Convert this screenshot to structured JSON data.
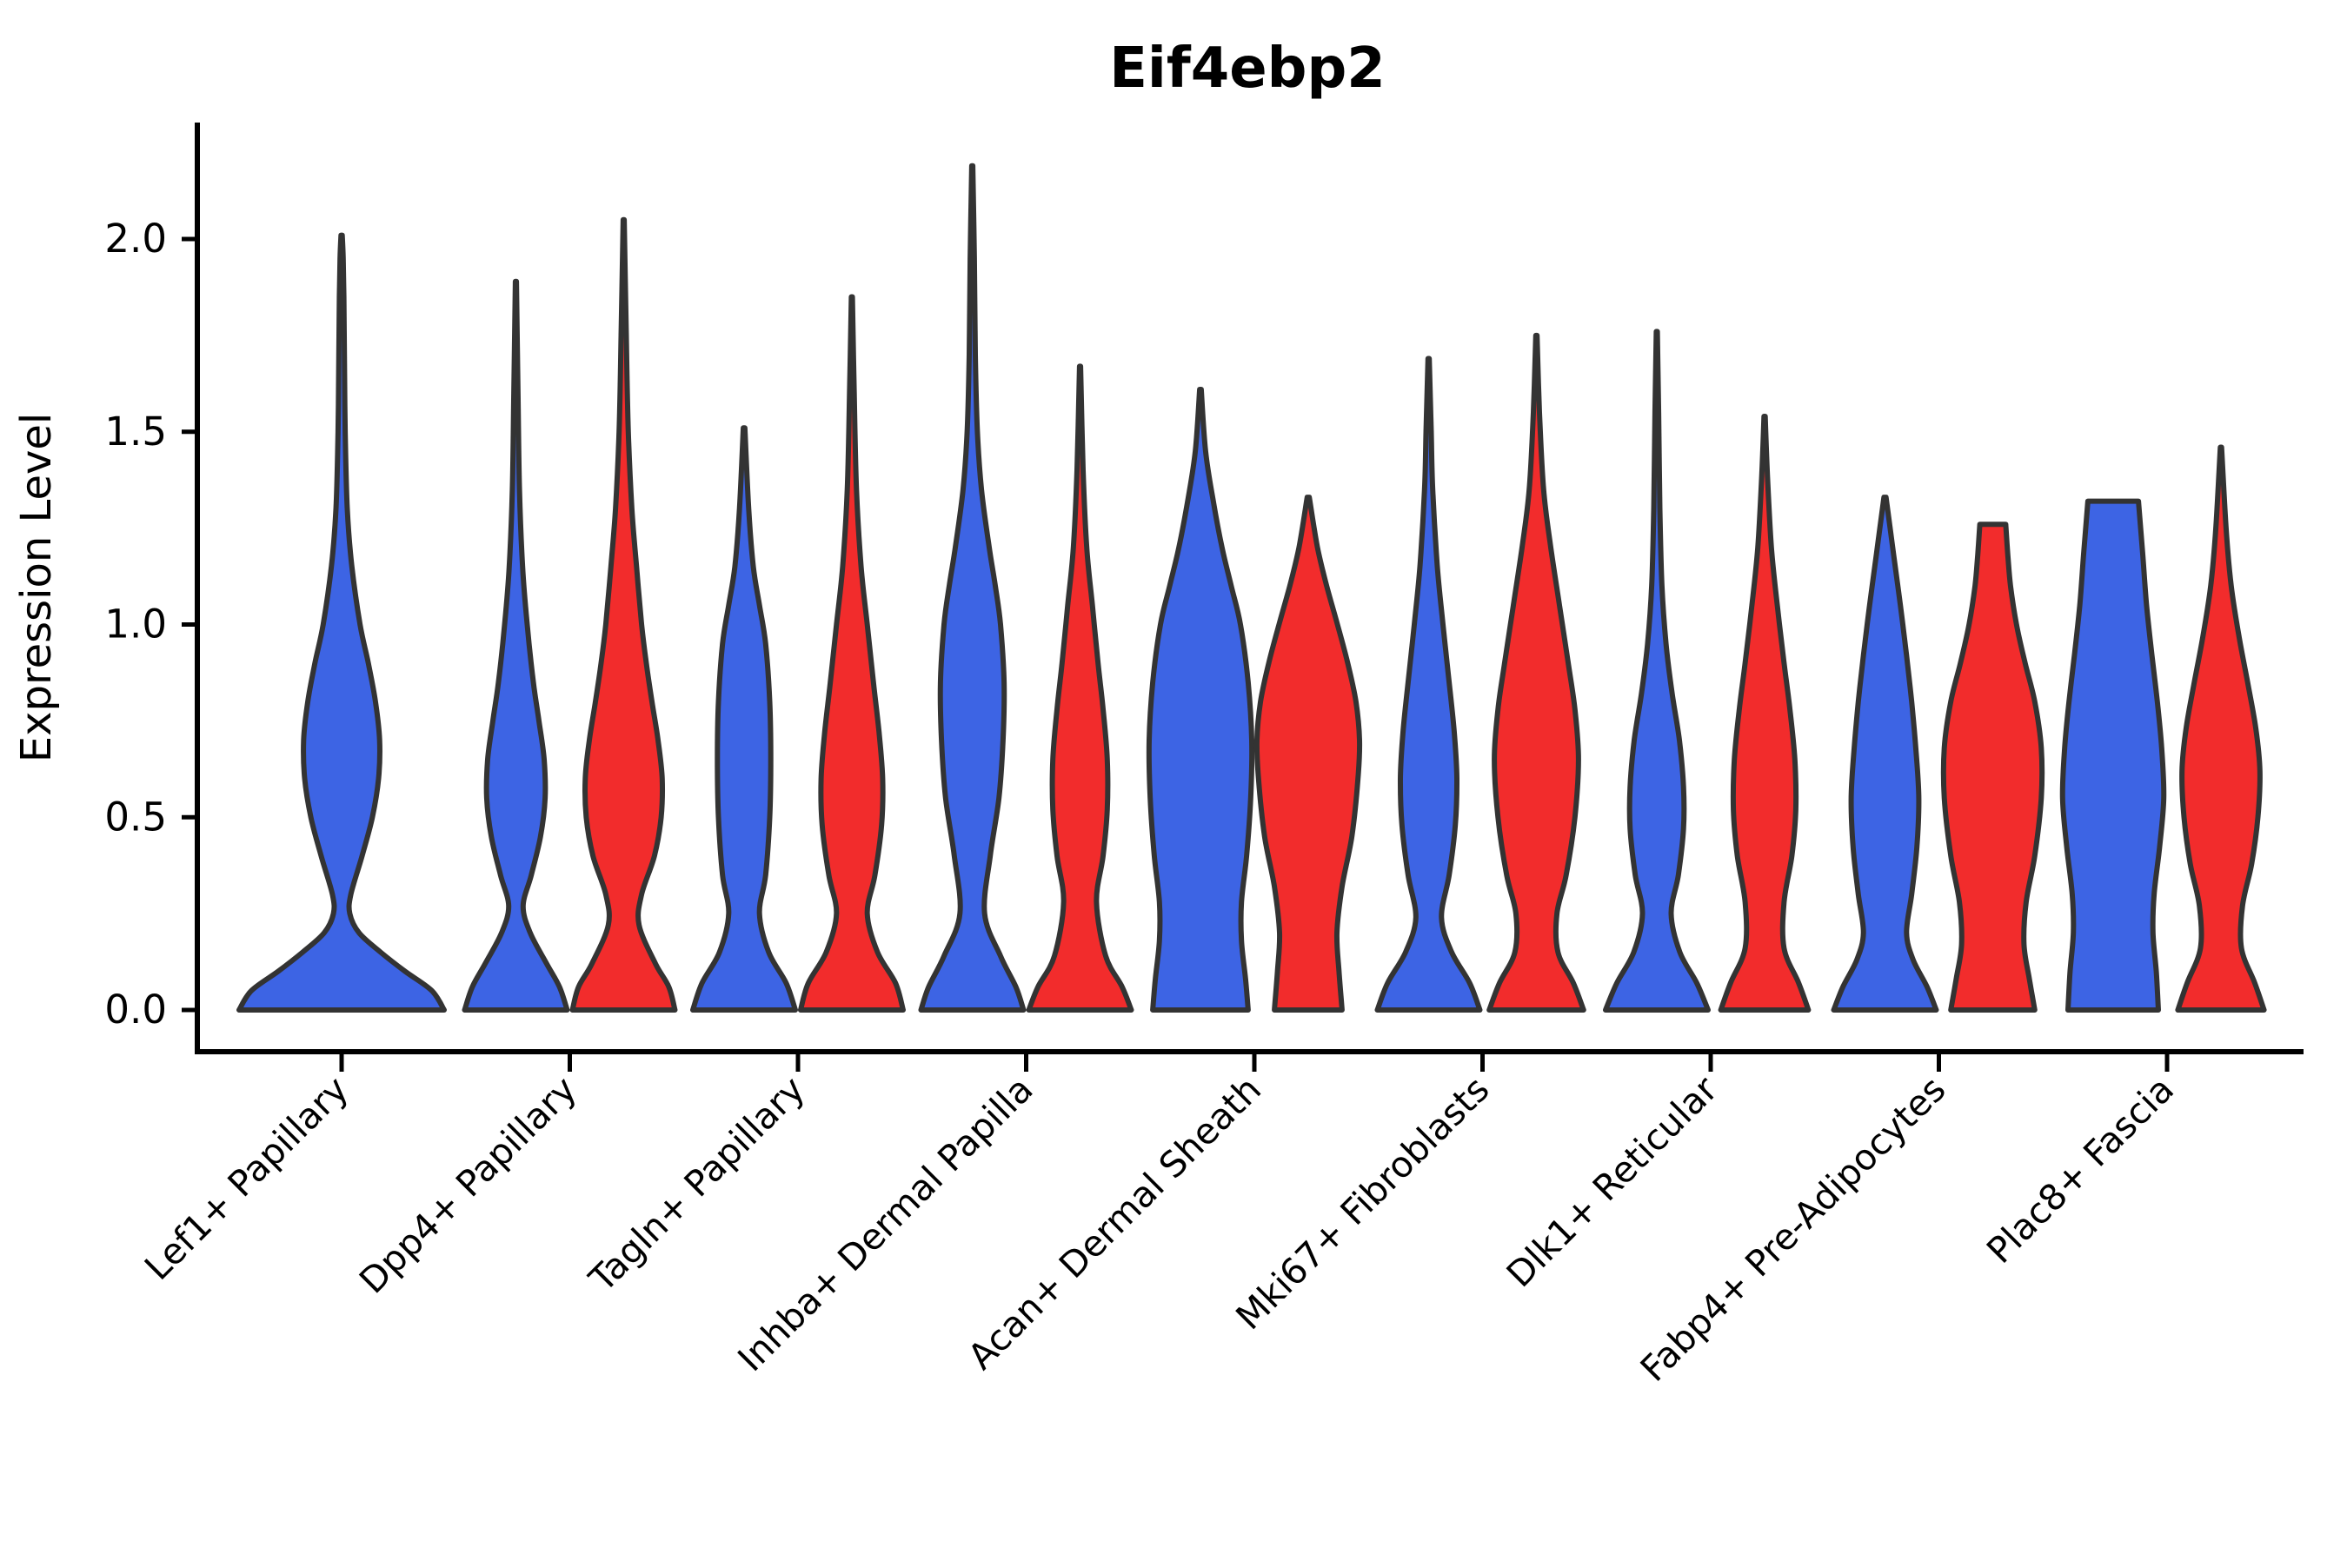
{
  "title": "Eif4ebp2",
  "axes": {
    "ylabel": "Expression Level",
    "ytick_labels": [
      "0.0",
      "0.5",
      "1.0",
      "1.5",
      "2.0"
    ],
    "ytick_values": [
      0.0,
      0.5,
      1.0,
      1.5,
      2.0
    ]
  },
  "style": {
    "blue": "#3D64E4",
    "red": "#F22C2C",
    "violin_outline": "#333333",
    "axis_color": "#000000",
    "background": "#ffffff"
  },
  "chart_data": {
    "type": "violin",
    "title": "Eif4ebp2",
    "xlabel": "",
    "ylabel": "Expression Level",
    "yticks": [
      0.0,
      0.5,
      1.0,
      1.5,
      2.0
    ],
    "ylim": [
      -0.11,
      2.3
    ],
    "grid": false,
    "legend": "none",
    "categories": [
      "Lef1+ Papillary",
      "Dpp4+ Papillary",
      "Tagln+ Papillary",
      "Inhba+ Dermal Papilla",
      "Acan+ Dermal Sheath",
      "Mki67+ Fibroblasts",
      "Dlk1+ Reticular",
      "Fabp4+ Pre-Adipocytes",
      "Plac8+ Fascia"
    ],
    "groups": [
      {
        "name": "blue",
        "color": "#3D64E4"
      },
      {
        "name": "red",
        "color": "#F22C2C"
      }
    ],
    "violins": [
      {
        "category": "Lef1+ Papillary",
        "group": "blue",
        "position": "center",
        "max": 2.01,
        "width_scale": 2.0,
        "flat_top": false,
        "profile": [
          [
            0,
            1.0
          ],
          [
            0.05,
            0.88
          ],
          [
            0.1,
            0.62
          ],
          [
            0.15,
            0.38
          ],
          [
            0.2,
            0.17
          ],
          [
            0.25,
            0.08
          ],
          [
            0.3,
            0.09
          ],
          [
            0.4,
            0.2
          ],
          [
            0.5,
            0.3
          ],
          [
            0.6,
            0.36
          ],
          [
            0.7,
            0.37
          ],
          [
            0.8,
            0.33
          ],
          [
            0.9,
            0.26
          ],
          [
            1.0,
            0.18
          ],
          [
            1.15,
            0.1
          ],
          [
            1.3,
            0.055
          ],
          [
            1.5,
            0.035
          ],
          [
            1.7,
            0.027
          ],
          [
            1.85,
            0.022
          ],
          [
            1.95,
            0.015
          ],
          [
            2.01,
            0.006
          ]
        ]
      },
      {
        "category": "Dpp4+ Papillary",
        "group": "blue",
        "position": "left",
        "max": 1.89,
        "width_scale": 1.0,
        "flat_top": false,
        "profile": [
          [
            0,
            1.0
          ],
          [
            0.06,
            0.85
          ],
          [
            0.12,
            0.6
          ],
          [
            0.2,
            0.28
          ],
          [
            0.27,
            0.14
          ],
          [
            0.35,
            0.3
          ],
          [
            0.45,
            0.48
          ],
          [
            0.55,
            0.57
          ],
          [
            0.65,
            0.55
          ],
          [
            0.75,
            0.45
          ],
          [
            0.85,
            0.34
          ],
          [
            1.0,
            0.22
          ],
          [
            1.15,
            0.13
          ],
          [
            1.35,
            0.07
          ],
          [
            1.6,
            0.04
          ],
          [
            1.89,
            0.01
          ]
        ]
      },
      {
        "category": "Dpp4+ Papillary",
        "group": "red",
        "position": "right",
        "max": 2.05,
        "width_scale": 1.0,
        "flat_top": false,
        "profile": [
          [
            0,
            1.0
          ],
          [
            0.06,
            0.88
          ],
          [
            0.12,
            0.62
          ],
          [
            0.22,
            0.3
          ],
          [
            0.3,
            0.35
          ],
          [
            0.4,
            0.6
          ],
          [
            0.5,
            0.73
          ],
          [
            0.6,
            0.75
          ],
          [
            0.7,
            0.67
          ],
          [
            0.8,
            0.55
          ],
          [
            0.9,
            0.44
          ],
          [
            1.0,
            0.35
          ],
          [
            1.15,
            0.25
          ],
          [
            1.3,
            0.16
          ],
          [
            1.5,
            0.09
          ],
          [
            1.75,
            0.05
          ],
          [
            2.05,
            0.01
          ]
        ]
      },
      {
        "category": "Tagln+ Papillary",
        "group": "blue",
        "position": "left",
        "max": 1.51,
        "width_scale": 1.0,
        "flat_top": false,
        "profile": [
          [
            0,
            1.0
          ],
          [
            0.07,
            0.82
          ],
          [
            0.15,
            0.48
          ],
          [
            0.25,
            0.3
          ],
          [
            0.35,
            0.42
          ],
          [
            0.5,
            0.5
          ],
          [
            0.65,
            0.52
          ],
          [
            0.8,
            0.5
          ],
          [
            0.95,
            0.42
          ],
          [
            1.05,
            0.3
          ],
          [
            1.15,
            0.18
          ],
          [
            1.3,
            0.09
          ],
          [
            1.51,
            0.015
          ]
        ]
      },
      {
        "category": "Tagln+ Papillary",
        "group": "red",
        "position": "right",
        "max": 1.85,
        "width_scale": 1.0,
        "flat_top": false,
        "profile": [
          [
            0,
            1.0
          ],
          [
            0.07,
            0.85
          ],
          [
            0.15,
            0.5
          ],
          [
            0.25,
            0.3
          ],
          [
            0.35,
            0.45
          ],
          [
            0.48,
            0.58
          ],
          [
            0.6,
            0.6
          ],
          [
            0.72,
            0.53
          ],
          [
            0.85,
            0.42
          ],
          [
            1.0,
            0.3
          ],
          [
            1.15,
            0.18
          ],
          [
            1.35,
            0.09
          ],
          [
            1.6,
            0.045
          ],
          [
            1.85,
            0.01
          ]
        ]
      },
      {
        "category": "Inhba+ Dermal Papilla",
        "group": "blue",
        "position": "left",
        "max": 2.19,
        "width_scale": 1.0,
        "flat_top": false,
        "profile": [
          [
            0,
            1.0
          ],
          [
            0.06,
            0.85
          ],
          [
            0.14,
            0.55
          ],
          [
            0.25,
            0.24
          ],
          [
            0.4,
            0.35
          ],
          [
            0.55,
            0.52
          ],
          [
            0.7,
            0.6
          ],
          [
            0.85,
            0.62
          ],
          [
            1.0,
            0.55
          ],
          [
            1.1,
            0.45
          ],
          [
            1.2,
            0.33
          ],
          [
            1.35,
            0.18
          ],
          [
            1.5,
            0.1
          ],
          [
            1.7,
            0.06
          ],
          [
            1.95,
            0.04
          ],
          [
            2.19,
            0.01
          ]
        ]
      },
      {
        "category": "Inhba+ Dermal Papilla",
        "group": "red",
        "position": "right",
        "max": 1.67,
        "width_scale": 1.0,
        "flat_top": false,
        "profile": [
          [
            0,
            1.0
          ],
          [
            0.06,
            0.82
          ],
          [
            0.14,
            0.5
          ],
          [
            0.28,
            0.32
          ],
          [
            0.4,
            0.45
          ],
          [
            0.52,
            0.53
          ],
          [
            0.65,
            0.53
          ],
          [
            0.78,
            0.45
          ],
          [
            0.9,
            0.35
          ],
          [
            1.05,
            0.24
          ],
          [
            1.2,
            0.13
          ],
          [
            1.4,
            0.06
          ],
          [
            1.67,
            0.01
          ]
        ]
      },
      {
        "category": "Acan+ Dermal Sheath",
        "group": "blue",
        "position": "left",
        "max": 1.61,
        "width_scale": 1.0,
        "flat_top": false,
        "profile": [
          [
            0,
            0.93
          ],
          [
            0.08,
            0.88
          ],
          [
            0.18,
            0.8
          ],
          [
            0.28,
            0.8
          ],
          [
            0.4,
            0.9
          ],
          [
            0.55,
            0.98
          ],
          [
            0.7,
            1.0
          ],
          [
            0.85,
            0.93
          ],
          [
            1.0,
            0.78
          ],
          [
            1.1,
            0.6
          ],
          [
            1.2,
            0.42
          ],
          [
            1.32,
            0.25
          ],
          [
            1.45,
            0.1
          ],
          [
            1.61,
            0.015
          ]
        ]
      },
      {
        "category": "Acan+ Dermal Sheath",
        "group": "red",
        "position": "right",
        "max": 1.33,
        "width_scale": 1.0,
        "flat_top": false,
        "profile": [
          [
            0,
            0.66
          ],
          [
            0.1,
            0.6
          ],
          [
            0.2,
            0.56
          ],
          [
            0.32,
            0.66
          ],
          [
            0.45,
            0.85
          ],
          [
            0.6,
            0.97
          ],
          [
            0.7,
            1.0
          ],
          [
            0.8,
            0.93
          ],
          [
            0.9,
            0.77
          ],
          [
            1.0,
            0.57
          ],
          [
            1.1,
            0.36
          ],
          [
            1.2,
            0.18
          ],
          [
            1.33,
            0.02
          ]
        ]
      },
      {
        "category": "Mki67+ Fibroblasts",
        "group": "blue",
        "position": "left",
        "max": 1.69,
        "width_scale": 1.0,
        "flat_top": false,
        "profile": [
          [
            0,
            1.0
          ],
          [
            0.07,
            0.8
          ],
          [
            0.15,
            0.45
          ],
          [
            0.24,
            0.25
          ],
          [
            0.35,
            0.4
          ],
          [
            0.48,
            0.52
          ],
          [
            0.6,
            0.55
          ],
          [
            0.72,
            0.5
          ],
          [
            0.85,
            0.4
          ],
          [
            1.0,
            0.28
          ],
          [
            1.15,
            0.17
          ],
          [
            1.35,
            0.08
          ],
          [
            1.5,
            0.05
          ],
          [
            1.69,
            0.012
          ]
        ]
      },
      {
        "category": "Mki67+ Fibroblasts",
        "group": "red",
        "position": "right",
        "max": 1.75,
        "width_scale": 1.0,
        "flat_top": false,
        "profile": [
          [
            0,
            0.92
          ],
          [
            0.07,
            0.72
          ],
          [
            0.15,
            0.42
          ],
          [
            0.25,
            0.4
          ],
          [
            0.35,
            0.58
          ],
          [
            0.5,
            0.75
          ],
          [
            0.65,
            0.82
          ],
          [
            0.78,
            0.75
          ],
          [
            0.9,
            0.62
          ],
          [
            1.05,
            0.45
          ],
          [
            1.2,
            0.28
          ],
          [
            1.35,
            0.14
          ],
          [
            1.55,
            0.06
          ],
          [
            1.75,
            0.012
          ]
        ]
      },
      {
        "category": "Dlk1+ Reticular",
        "group": "blue",
        "position": "left",
        "max": 1.76,
        "width_scale": 1.0,
        "flat_top": false,
        "profile": [
          [
            0,
            1.0
          ],
          [
            0.07,
            0.78
          ],
          [
            0.15,
            0.45
          ],
          [
            0.25,
            0.28
          ],
          [
            0.35,
            0.42
          ],
          [
            0.47,
            0.52
          ],
          [
            0.58,
            0.52
          ],
          [
            0.7,
            0.44
          ],
          [
            0.82,
            0.3
          ],
          [
            0.95,
            0.18
          ],
          [
            1.1,
            0.1
          ],
          [
            1.3,
            0.06
          ],
          [
            1.55,
            0.035
          ],
          [
            1.76,
            0.01
          ]
        ]
      },
      {
        "category": "Dlk1+ Reticular",
        "group": "red",
        "position": "right",
        "max": 1.54,
        "width_scale": 0.95,
        "flat_top": false,
        "profile": [
          [
            0,
            0.9
          ],
          [
            0.07,
            0.7
          ],
          [
            0.16,
            0.4
          ],
          [
            0.28,
            0.4
          ],
          [
            0.4,
            0.56
          ],
          [
            0.52,
            0.64
          ],
          [
            0.65,
            0.62
          ],
          [
            0.78,
            0.52
          ],
          [
            0.9,
            0.4
          ],
          [
            1.05,
            0.26
          ],
          [
            1.2,
            0.14
          ],
          [
            1.38,
            0.06
          ],
          [
            1.54,
            0.012
          ]
        ]
      },
      {
        "category": "Fabp4+ Pre-Adipocytes",
        "group": "blue",
        "position": "left",
        "max": 1.33,
        "width_scale": 1.0,
        "flat_top": false,
        "profile": [
          [
            0,
            1.0
          ],
          [
            0.06,
            0.82
          ],
          [
            0.13,
            0.55
          ],
          [
            0.2,
            0.42
          ],
          [
            0.3,
            0.52
          ],
          [
            0.42,
            0.62
          ],
          [
            0.55,
            0.66
          ],
          [
            0.68,
            0.6
          ],
          [
            0.8,
            0.52
          ],
          [
            0.92,
            0.42
          ],
          [
            1.05,
            0.3
          ],
          [
            1.18,
            0.17
          ],
          [
            1.33,
            0.02
          ]
        ]
      },
      {
        "category": "Fabp4+ Pre-Adipocytes",
        "group": "red",
        "position": "right",
        "max": 1.26,
        "width_scale": 1.05,
        "flat_top": true,
        "profile": [
          [
            0,
            0.78
          ],
          [
            0.08,
            0.68
          ],
          [
            0.17,
            0.58
          ],
          [
            0.28,
            0.62
          ],
          [
            0.4,
            0.78
          ],
          [
            0.55,
            0.9
          ],
          [
            0.68,
            0.9
          ],
          [
            0.8,
            0.78
          ],
          [
            0.9,
            0.6
          ],
          [
            1.0,
            0.44
          ],
          [
            1.1,
            0.33
          ],
          [
            1.18,
            0.28
          ],
          [
            1.26,
            0.24
          ]
        ]
      },
      {
        "category": "Plac8+ Fascia",
        "group": "blue",
        "position": "left",
        "max": 1.32,
        "width_scale": 1.05,
        "flat_top": true,
        "profile": [
          [
            0,
            0.84
          ],
          [
            0.1,
            0.8
          ],
          [
            0.2,
            0.74
          ],
          [
            0.3,
            0.76
          ],
          [
            0.42,
            0.86
          ],
          [
            0.55,
            0.94
          ],
          [
            0.68,
            0.9
          ],
          [
            0.8,
            0.82
          ],
          [
            0.92,
            0.72
          ],
          [
            1.05,
            0.62
          ],
          [
            1.18,
            0.55
          ],
          [
            1.32,
            0.47
          ]
        ]
      },
      {
        "category": "Plac8+ Fascia",
        "group": "red",
        "position": "right",
        "max": 1.46,
        "width_scale": 1.0,
        "flat_top": false,
        "profile": [
          [
            0,
            0.84
          ],
          [
            0.07,
            0.66
          ],
          [
            0.16,
            0.4
          ],
          [
            0.27,
            0.42
          ],
          [
            0.38,
            0.6
          ],
          [
            0.5,
            0.72
          ],
          [
            0.62,
            0.76
          ],
          [
            0.73,
            0.68
          ],
          [
            0.85,
            0.52
          ],
          [
            0.97,
            0.35
          ],
          [
            1.1,
            0.2
          ],
          [
            1.25,
            0.1
          ],
          [
            1.46,
            0.012
          ]
        ]
      }
    ]
  }
}
